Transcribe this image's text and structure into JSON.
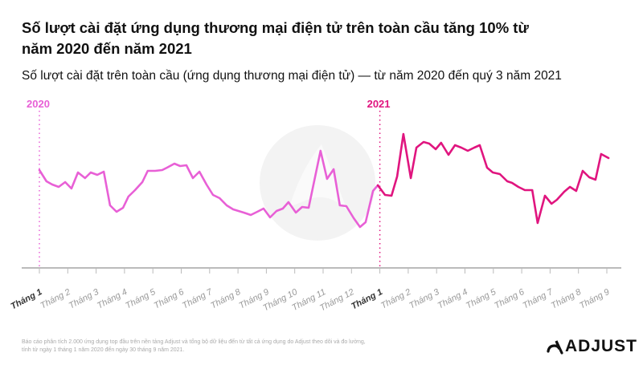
{
  "header": {
    "title": "Số lượt cài đặt ứng dụng thương mại điện tử trên toàn cầu tăng 10% từ năm 2020 đến năm 2021",
    "subtitle": "Số lượt cài đặt trên toàn cầu (ứng dụng thương mại điện tử) — từ năm 2020 đến quý 3 năm 2021"
  },
  "footnote": {
    "line1": "Báo cáo phân tích 2.000 ứng dụng top đầu trên nền tảng Adjust và tổng bộ dữ liệu đến từ tất cả ứng dụng do Adjust theo dõi và đo lường,",
    "line2": "tính từ ngày 1 tháng 1 năm 2020 đến ngày 30 tháng 9 năm 2021."
  },
  "brand": {
    "logo_text": "ADJUST"
  },
  "chart_data": {
    "type": "line",
    "title": "Số lượt cài đặt trên toàn cầu (ứng dụng thương mại điện tử) — từ năm 2020 đến quý 3 năm 2021",
    "xlabel": "",
    "ylabel": "",
    "x_unit": "months since Tháng 1 2020",
    "y_unit": "relative install index (unlabeled axis)",
    "ylim": [
      0,
      200
    ],
    "grid": false,
    "year_markers": [
      {
        "label": "2020",
        "x": 0
      },
      {
        "label": "2021",
        "x": 12
      }
    ],
    "tick_labels": [
      "Tháng 1",
      "Tháng 2",
      "Tháng 3",
      "Tháng 4",
      "Tháng 5",
      "Tháng 6",
      "Tháng 7",
      "Tháng 8",
      "Tháng 9",
      "Tháng 10",
      "Tháng 11",
      "Tháng 12",
      "Tháng 1",
      "Tháng 2",
      "Tháng 3",
      "Tháng 4",
      "Tháng 5",
      "Tháng 6",
      "Tháng 7",
      "Tháng 8",
      "Tháng 9"
    ],
    "series": [
      {
        "name": "2020",
        "color": "#e860d6",
        "points": [
          [
            0,
            122
          ],
          [
            0.25,
            108
          ],
          [
            0.45,
            104
          ],
          [
            0.68,
            101
          ],
          [
            0.91,
            107
          ],
          [
            1.13,
            99
          ],
          [
            1.36,
            119
          ],
          [
            1.61,
            112
          ],
          [
            1.81,
            119
          ],
          [
            2.04,
            116
          ],
          [
            2.27,
            120
          ],
          [
            2.49,
            78
          ],
          [
            2.72,
            70
          ],
          [
            2.95,
            75
          ],
          [
            3.14,
            89
          ],
          [
            3.37,
            97
          ],
          [
            3.63,
            107
          ],
          [
            3.82,
            121
          ],
          [
            4.08,
            121
          ],
          [
            4.33,
            122
          ],
          [
            4.5,
            125
          ],
          [
            4.76,
            130
          ],
          [
            4.96,
            127
          ],
          [
            5.18,
            128
          ],
          [
            5.41,
            112
          ],
          [
            5.64,
            120
          ],
          [
            5.89,
            104
          ],
          [
            6.12,
            91
          ],
          [
            6.35,
            87
          ],
          [
            6.6,
            78
          ],
          [
            6.83,
            73
          ],
          [
            7.2,
            69
          ],
          [
            7.45,
            66
          ],
          [
            7.68,
            70
          ],
          [
            7.9,
            74
          ],
          [
            8.13,
            63
          ],
          [
            8.36,
            71
          ],
          [
            8.58,
            74
          ],
          [
            8.78,
            82
          ],
          [
            9.04,
            69
          ],
          [
            9.26,
            76
          ],
          [
            9.49,
            75
          ],
          [
            9.91,
            146
          ],
          [
            10.14,
            111
          ],
          [
            10.37,
            123
          ],
          [
            10.59,
            78
          ],
          [
            10.82,
            77
          ],
          [
            11.08,
            62
          ],
          [
            11.3,
            51
          ],
          [
            11.5,
            57
          ],
          [
            11.76,
            96
          ],
          [
            11.93,
            103
          ]
        ]
      },
      {
        "name": "2021",
        "color": "#e0157f",
        "points": [
          [
            11.93,
            103
          ],
          [
            12.18,
            91
          ],
          [
            12.41,
            90
          ],
          [
            12.61,
            114
          ],
          [
            12.83,
            167
          ],
          [
            13.09,
            112
          ],
          [
            13.29,
            150
          ],
          [
            13.54,
            157
          ],
          [
            13.74,
            155
          ],
          [
            13.97,
            148
          ],
          [
            14.16,
            156
          ],
          [
            14.42,
            141
          ],
          [
            14.65,
            153
          ],
          [
            14.87,
            150
          ],
          [
            15.1,
            146
          ],
          [
            15.33,
            150
          ],
          [
            15.52,
            153
          ],
          [
            15.78,
            125
          ],
          [
            15.98,
            119
          ],
          [
            16.23,
            117
          ],
          [
            16.49,
            108
          ],
          [
            16.66,
            106
          ],
          [
            16.88,
            101
          ],
          [
            17.11,
            97
          ],
          [
            17.37,
            97
          ],
          [
            17.56,
            56
          ],
          [
            17.82,
            90
          ],
          [
            18.05,
            80
          ],
          [
            18.24,
            85
          ],
          [
            18.5,
            95
          ],
          [
            18.7,
            101
          ],
          [
            18.92,
            96
          ],
          [
            19.15,
            121
          ],
          [
            19.38,
            113
          ],
          [
            19.6,
            110
          ],
          [
            19.8,
            142
          ],
          [
            20.06,
            137
          ]
        ]
      }
    ]
  }
}
